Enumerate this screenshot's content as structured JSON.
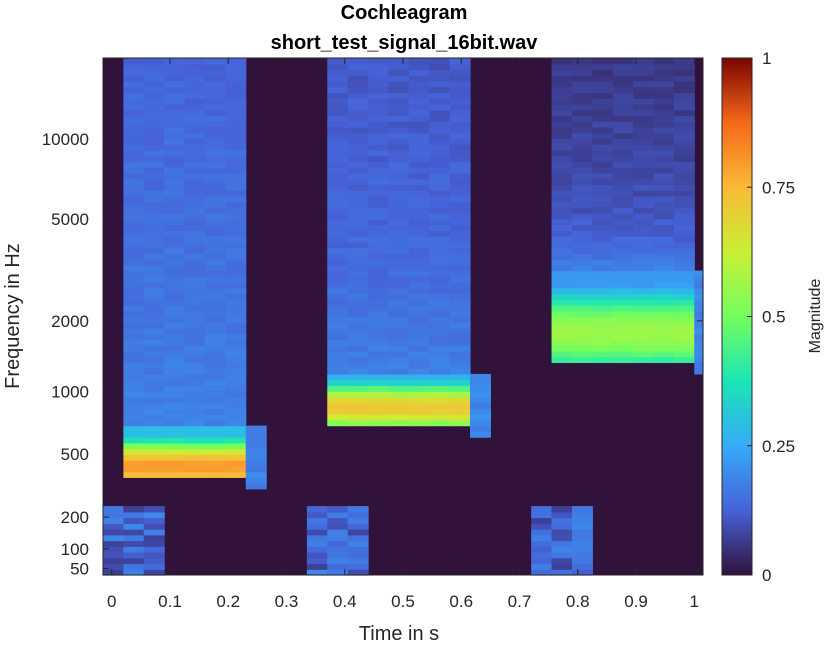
{
  "chart_data": {
    "type": "heatmap",
    "title_line1": "Cochleagram",
    "title_line2": "short_test_signal_16bit.wav",
    "xlabel": "Time in s",
    "ylabel": "Frequency in Hz",
    "xlim": [
      -0.015,
      1.015
    ],
    "ylim": [
      35,
      20000
    ],
    "yscale": "erb",
    "x_ticks": [
      0,
      0.1,
      0.2,
      0.3,
      0.4,
      0.5,
      0.6,
      0.7,
      0.8,
      0.9,
      1
    ],
    "x_tick_labels": [
      "0",
      "0.1",
      "0.2",
      "0.3",
      "0.4",
      "0.5",
      "0.6",
      "0.7",
      "0.8",
      "0.9",
      "1"
    ],
    "y_ticks": [
      50,
      100,
      200,
      500,
      1000,
      2000,
      5000,
      10000
    ],
    "y_tick_labels": [
      "50",
      "100",
      "200",
      "500",
      "1000",
      "2000",
      "5000",
      "10000"
    ],
    "colormap": "turbo",
    "colorbar": {
      "label": "Magnitude",
      "ticks": [
        0,
        0.25,
        0.5,
        0.75,
        1
      ],
      "tick_labels": [
        "0",
        "0.25",
        "0.5",
        "0.75",
        "1"
      ],
      "range": [
        0,
        1
      ]
    },
    "time_step_s": 0.035,
    "segments": [
      {
        "t_start": 0.02,
        "t_end": 0.245,
        "freq_low_hz": 360,
        "freq_high_hz": 700,
        "peak_hz": 430,
        "peak_magnitude": 0.8,
        "upper_magnitude": 0.17
      },
      {
        "t_start": 0.37,
        "t_end": 0.615,
        "freq_low_hz": 700,
        "freq_high_hz": 1200,
        "peak_hz": 850,
        "peak_magnitude": 0.72,
        "upper_magnitude": 0.15
      },
      {
        "t_start": 0.75,
        "t_end": 1.0,
        "freq_low_hz": 1380,
        "freq_high_hz": 3200,
        "peak_hz": 1800,
        "peak_magnitude": 0.56,
        "upper_magnitude": 0.1
      }
    ]
  }
}
